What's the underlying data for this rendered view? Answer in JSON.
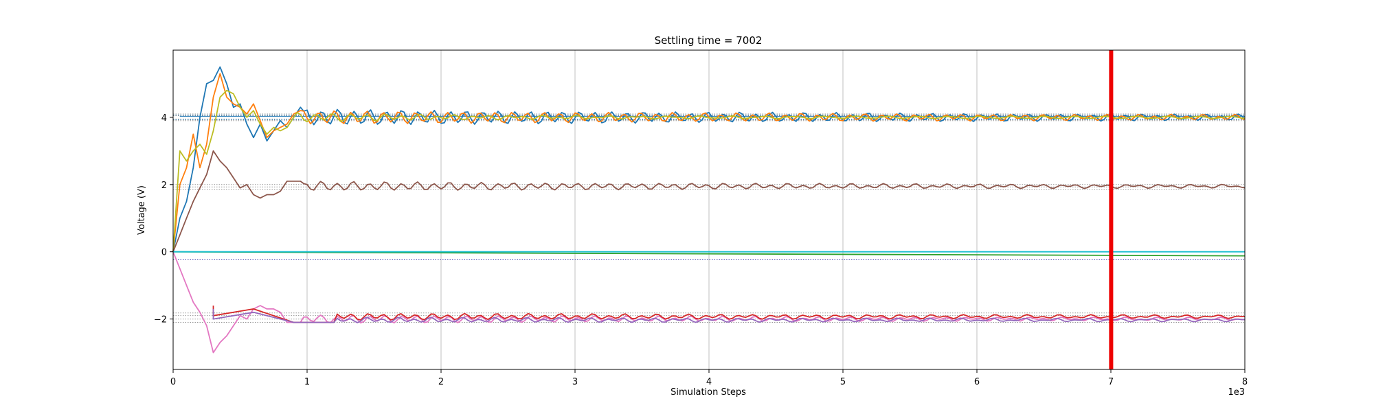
{
  "chart_data": {
    "type": "line",
    "title": "Settling time = 7002",
    "xlabel": "Simulation Steps",
    "ylabel": "Voltage (V)",
    "x_multiplier_label": "1e3",
    "xlim": [
      0,
      8000
    ],
    "ylim": [
      -3.5,
      6.0
    ],
    "xticks": [
      0,
      1000,
      2000,
      3000,
      4000,
      5000,
      6000,
      7000,
      8000
    ],
    "xtick_labels": [
      "0",
      "1",
      "2",
      "3",
      "4",
      "5",
      "6",
      "7",
      "8"
    ],
    "yticks": [
      -2,
      0,
      2,
      4
    ],
    "ytick_labels": [
      "−2",
      "0",
      "2",
      "4"
    ],
    "grid": "x",
    "settling_line": {
      "x": 7002,
      "color": "#ee0000"
    },
    "reference_lines": [
      {
        "y": 4.1,
        "style": "dotted",
        "color": "#999999"
      },
      {
        "y": 4.05,
        "style": "dotted",
        "color": "#999999"
      },
      {
        "y": 3.95,
        "style": "dotted",
        "color": "#999999"
      },
      {
        "y": 3.9,
        "style": "dotted",
        "color": "#999999"
      },
      {
        "y": 4.07,
        "style": "dotted",
        "color": "#1f77b4"
      },
      {
        "y": 3.93,
        "style": "dotted",
        "color": "#1f77b4"
      },
      {
        "y": 4.03,
        "style": "solid",
        "color": "#1f77b4",
        "x_from": 50
      },
      {
        "y": 2.0,
        "style": "dotted",
        "color": "#999999"
      },
      {
        "y": 1.93,
        "style": "dotted",
        "color": "#999999"
      },
      {
        "y": 1.86,
        "style": "dotted",
        "color": "#999999"
      },
      {
        "y": -0.22,
        "style": "dotted",
        "color": "#4a4ab0"
      },
      {
        "y": -1.82,
        "style": "dotted",
        "color": "#999999"
      },
      {
        "y": -1.9,
        "style": "dotted",
        "color": "#999999"
      },
      {
        "y": -2.0,
        "style": "dotted",
        "color": "#999999"
      },
      {
        "y": -2.1,
        "style": "dotted",
        "color": "#999999"
      }
    ],
    "series": [
      {
        "color": "#1f77b4",
        "model": "osc",
        "target": 4.0,
        "start": 0,
        "jumps": [
          [
            50,
            1.0
          ],
          [
            100,
            1.5
          ],
          [
            150,
            2.5
          ],
          [
            200,
            4.0
          ],
          [
            250,
            5.0
          ],
          [
            300,
            5.1
          ],
          [
            350,
            5.5
          ],
          [
            400,
            5.0
          ],
          [
            450,
            4.3
          ],
          [
            500,
            4.4
          ],
          [
            550,
            3.8
          ],
          [
            600,
            3.4
          ],
          [
            650,
            3.8
          ],
          [
            700,
            3.3
          ],
          [
            750,
            3.6
          ],
          [
            800,
            3.9
          ],
          [
            850,
            3.7
          ],
          [
            900,
            4.0
          ],
          [
            950,
            4.3
          ]
        ],
        "amp": 0.22,
        "period": 120,
        "decay": 6000,
        "phase": 0
      },
      {
        "color": "#ff7f0e",
        "model": "osc",
        "target": 4.0,
        "start": 0,
        "jumps": [
          [
            50,
            2.0
          ],
          [
            100,
            2.5
          ],
          [
            150,
            3.5
          ],
          [
            200,
            2.5
          ],
          [
            250,
            3.2
          ],
          [
            300,
            4.6
          ],
          [
            350,
            5.3
          ],
          [
            400,
            4.6
          ],
          [
            450,
            4.4
          ],
          [
            500,
            4.3
          ],
          [
            550,
            4.1
          ],
          [
            600,
            4.4
          ],
          [
            650,
            3.9
          ],
          [
            700,
            3.4
          ],
          [
            750,
            3.6
          ],
          [
            800,
            3.7
          ],
          [
            850,
            3.8
          ],
          [
            900,
            4.1
          ],
          [
            950,
            4.2
          ]
        ],
        "amp": 0.18,
        "period": 120,
        "decay": 6000,
        "phase": 1.2
      },
      {
        "color": "#bcbd22",
        "model": "osc",
        "target": 4.0,
        "start": 0,
        "jumps": [
          [
            50,
            3.0
          ],
          [
            100,
            2.7
          ],
          [
            150,
            3.0
          ],
          [
            200,
            3.2
          ],
          [
            250,
            2.9
          ],
          [
            300,
            3.6
          ],
          [
            350,
            4.6
          ],
          [
            400,
            4.8
          ],
          [
            450,
            4.7
          ],
          [
            500,
            4.3
          ],
          [
            550,
            4.0
          ],
          [
            600,
            4.2
          ],
          [
            650,
            3.8
          ],
          [
            700,
            3.5
          ],
          [
            750,
            3.7
          ],
          [
            800,
            3.6
          ],
          [
            850,
            3.7
          ],
          [
            900,
            4.0
          ]
        ],
        "amp": 0.12,
        "period": 130,
        "decay": 1500,
        "phase": 0.6
      },
      {
        "color": "#8c564b",
        "model": "osc",
        "target": 1.95,
        "start": 0,
        "jumps": [
          [
            50,
            0.5
          ],
          [
            100,
            1.0
          ],
          [
            150,
            1.5
          ],
          [
            200,
            1.9
          ],
          [
            250,
            2.3
          ],
          [
            300,
            3.0
          ],
          [
            350,
            2.7
          ],
          [
            400,
            2.5
          ],
          [
            450,
            2.2
          ],
          [
            500,
            1.9
          ],
          [
            550,
            2.0
          ],
          [
            600,
            1.7
          ],
          [
            650,
            1.6
          ],
          [
            700,
            1.7
          ],
          [
            750,
            1.7
          ],
          [
            800,
            1.8
          ],
          [
            850,
            2.1
          ],
          [
            900,
            2.1
          ],
          [
            950,
            2.1
          ]
        ],
        "amp": 0.12,
        "period": 120,
        "decay": 5000,
        "phase": 0.3
      },
      {
        "color": "#e377c2",
        "model": "osc",
        "target": -2.0,
        "start": 0,
        "jumps": [
          [
            50,
            -0.5
          ],
          [
            100,
            -1.0
          ],
          [
            150,
            -1.5
          ],
          [
            200,
            -1.8
          ],
          [
            250,
            -2.2
          ],
          [
            300,
            -3.0
          ],
          [
            350,
            -2.7
          ],
          [
            400,
            -2.5
          ],
          [
            450,
            -2.2
          ],
          [
            500,
            -1.9
          ],
          [
            550,
            -2.0
          ],
          [
            600,
            -1.7
          ],
          [
            650,
            -1.6
          ],
          [
            700,
            -1.7
          ],
          [
            750,
            -1.7
          ],
          [
            800,
            -1.8
          ],
          [
            850,
            -2.1
          ],
          [
            900,
            -2.1
          ],
          [
            950,
            -2.1
          ]
        ],
        "amp": 0.1,
        "period": 120,
        "decay": 5000,
        "phase": 0.3
      },
      {
        "color": "#d62728",
        "model": "osc",
        "target": -1.93,
        "start": -1.6,
        "jumps": [
          [
            300,
            -1.9
          ],
          [
            600,
            -1.7
          ],
          [
            900,
            -2.1
          ],
          [
            1200,
            -2.1
          ]
        ],
        "amp": 0.08,
        "period": 120,
        "decay": 6000,
        "phase": 0.9,
        "from": 300
      },
      {
        "color": "#9467bd",
        "model": "osc",
        "target": -2.03,
        "start": -1.7,
        "jumps": [
          [
            300,
            -2.0
          ],
          [
            600,
            -1.8
          ],
          [
            900,
            -2.1
          ],
          [
            1200,
            -2.1
          ]
        ],
        "amp": 0.06,
        "period": 120,
        "decay": 6000,
        "phase": 1.5,
        "from": 300
      },
      {
        "color": "#2ca02c",
        "model": "linear",
        "x": [
          0,
          8000
        ],
        "y": [
          0.0,
          -0.12
        ]
      },
      {
        "color": "#17becf",
        "model": "linear",
        "x": [
          0,
          8000
        ],
        "y": [
          0.0,
          0.0
        ]
      }
    ]
  }
}
